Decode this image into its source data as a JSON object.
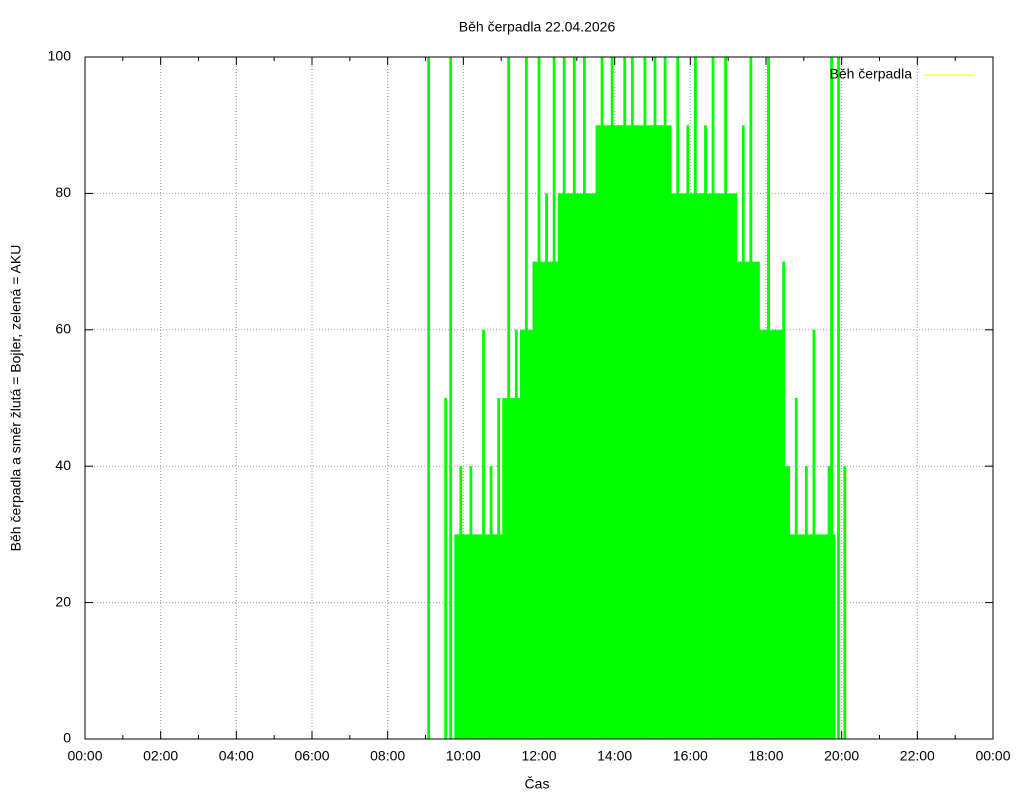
{
  "chart_data": {
    "type": "impulse",
    "title": "Běh čerpadla 22.04.2026",
    "x_label": "Čas",
    "y_label": "Běh čerpadla a směr žlutá = Bojler, zelená = AKU",
    "xlim": [
      0,
      1440
    ],
    "xticks": [
      {
        "value": 0,
        "label": "00:00"
      },
      {
        "value": 120,
        "label": "02:00"
      },
      {
        "value": 240,
        "label": "04:00"
      },
      {
        "value": 360,
        "label": "06:00"
      },
      {
        "value": 480,
        "label": "08:00"
      },
      {
        "value": 600,
        "label": "10:00"
      },
      {
        "value": 720,
        "label": "12:00"
      },
      {
        "value": 840,
        "label": "14:00"
      },
      {
        "value": 960,
        "label": "16:00"
      },
      {
        "value": 1080,
        "label": "18:00"
      },
      {
        "value": 1200,
        "label": "20:00"
      },
      {
        "value": 1320,
        "label": "22:00"
      },
      {
        "value": 1440,
        "label": "00:00"
      }
    ],
    "ylim": [
      0,
      100
    ],
    "yticks": [
      0,
      20,
      40,
      60,
      80,
      100
    ],
    "grid": true,
    "legend_position": "top-right",
    "legend_color": "#ffff00",
    "x": [
      545,
      572,
      580,
      588,
      592,
      596,
      600,
      604,
      608,
      612,
      616,
      620,
      624,
      628,
      632,
      636,
      640,
      644,
      648,
      652,
      656,
      660,
      664,
      668,
      672,
      676,
      680,
      684,
      688,
      692,
      696,
      700,
      704,
      708,
      712,
      716,
      720,
      724,
      728,
      732,
      736,
      740,
      744,
      748,
      752,
      756,
      760,
      764,
      768,
      772,
      776,
      780,
      784,
      788,
      792,
      796,
      800,
      804,
      808,
      812,
      816,
      820,
      824,
      828,
      832,
      836,
      840,
      844,
      848,
      852,
      856,
      860,
      864,
      868,
      872,
      876,
      880,
      884,
      888,
      892,
      896,
      900,
      904,
      908,
      912,
      916,
      920,
      924,
      928,
      932,
      936,
      940,
      944,
      948,
      952,
      956,
      960,
      964,
      968,
      972,
      976,
      980,
      984,
      988,
      992,
      996,
      1000,
      1004,
      1008,
      1012,
      1016,
      1020,
      1024,
      1028,
      1032,
      1036,
      1040,
      1044,
      1048,
      1052,
      1056,
      1060,
      1064,
      1068,
      1072,
      1076,
      1080,
      1084,
      1088,
      1092,
      1096,
      1100,
      1104,
      1108,
      1112,
      1116,
      1120,
      1124,
      1128,
      1132,
      1136,
      1140,
      1144,
      1148,
      1152,
      1156,
      1160,
      1164,
      1168,
      1172,
      1176,
      1180,
      1184,
      1188,
      1195,
      1205
    ],
    "series": [
      {
        "name": "Běh čerpadla",
        "color": "#00ff00",
        "values": [
          100,
          50,
          100,
          30,
          30,
          40,
          30,
          30,
          30,
          40,
          30,
          30,
          30,
          30,
          60,
          30,
          30,
          40,
          30,
          30,
          50,
          30,
          50,
          50,
          100,
          50,
          50,
          60,
          50,
          60,
          60,
          100,
          60,
          60,
          70,
          70,
          100,
          70,
          70,
          80,
          70,
          70,
          100,
          70,
          80,
          80,
          100,
          80,
          80,
          80,
          100,
          80,
          80,
          80,
          100,
          80,
          80,
          80,
          80,
          90,
          90,
          100,
          90,
          90,
          90,
          100,
          90,
          90,
          90,
          90,
          100,
          90,
          90,
          100,
          90,
          90,
          90,
          90,
          100,
          90,
          90,
          90,
          100,
          90,
          90,
          90,
          100,
          90,
          90,
          80,
          80,
          100,
          80,
          80,
          80,
          90,
          80,
          80,
          100,
          80,
          80,
          80,
          90,
          80,
          80,
          100,
          80,
          80,
          80,
          80,
          100,
          80,
          80,
          80,
          80,
          70,
          70,
          90,
          70,
          70,
          100,
          70,
          70,
          70,
          60,
          60,
          60,
          100,
          60,
          60,
          60,
          60,
          60,
          70,
          40,
          40,
          30,
          30,
          50,
          30,
          30,
          30,
          40,
          30,
          30,
          60,
          30,
          30,
          30,
          30,
          30,
          40,
          100,
          30,
          100,
          40
        ]
      }
    ]
  }
}
